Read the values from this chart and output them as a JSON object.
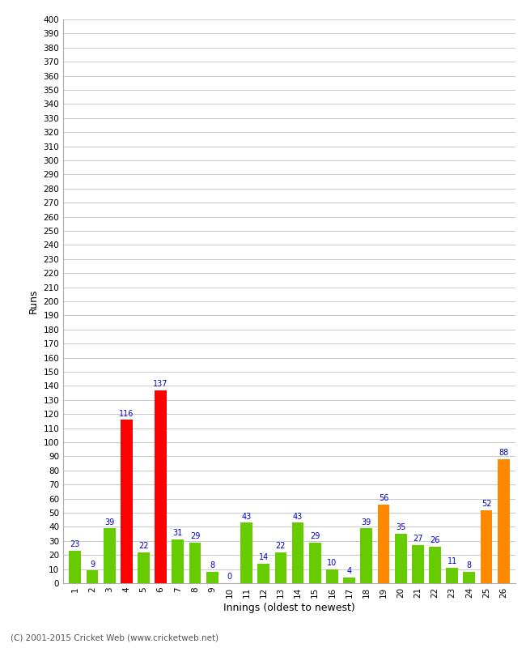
{
  "xlabel": "Innings (oldest to newest)",
  "ylabel": "Runs",
  "categories": [
    1,
    2,
    3,
    4,
    5,
    6,
    7,
    8,
    9,
    10,
    11,
    12,
    13,
    14,
    15,
    16,
    17,
    18,
    19,
    20,
    21,
    22,
    23,
    24,
    25,
    26
  ],
  "values": [
    23,
    9,
    39,
    116,
    22,
    137,
    31,
    29,
    8,
    0,
    43,
    14,
    22,
    43,
    29,
    10,
    4,
    39,
    56,
    35,
    27,
    26,
    11,
    8,
    52,
    88
  ],
  "colors": [
    "#66cc00",
    "#66cc00",
    "#66cc00",
    "#ff0000",
    "#66cc00",
    "#ff0000",
    "#66cc00",
    "#66cc00",
    "#66cc00",
    "#66cc00",
    "#66cc00",
    "#66cc00",
    "#66cc00",
    "#66cc00",
    "#66cc00",
    "#66cc00",
    "#66cc00",
    "#66cc00",
    "#ff8800",
    "#66cc00",
    "#66cc00",
    "#66cc00",
    "#66cc00",
    "#66cc00",
    "#ff8800",
    "#ff8800"
  ],
  "ylim": [
    0,
    400
  ],
  "yticks": [
    0,
    10,
    20,
    30,
    40,
    50,
    60,
    70,
    80,
    90,
    100,
    110,
    120,
    130,
    140,
    150,
    160,
    170,
    180,
    190,
    200,
    210,
    220,
    230,
    240,
    250,
    260,
    270,
    280,
    290,
    300,
    310,
    320,
    330,
    340,
    350,
    360,
    370,
    380,
    390,
    400
  ],
  "footer": "(C) 2001-2015 Cricket Web (www.cricketweb.net)",
  "label_color": "#0000cc",
  "bg_color": "#ffffff",
  "grid_color": "#cccccc",
  "bar_width": 0.7,
  "tick_fontsize": 7.5,
  "label_fontsize": 7,
  "axis_label_fontsize": 9,
  "footer_fontsize": 7.5
}
